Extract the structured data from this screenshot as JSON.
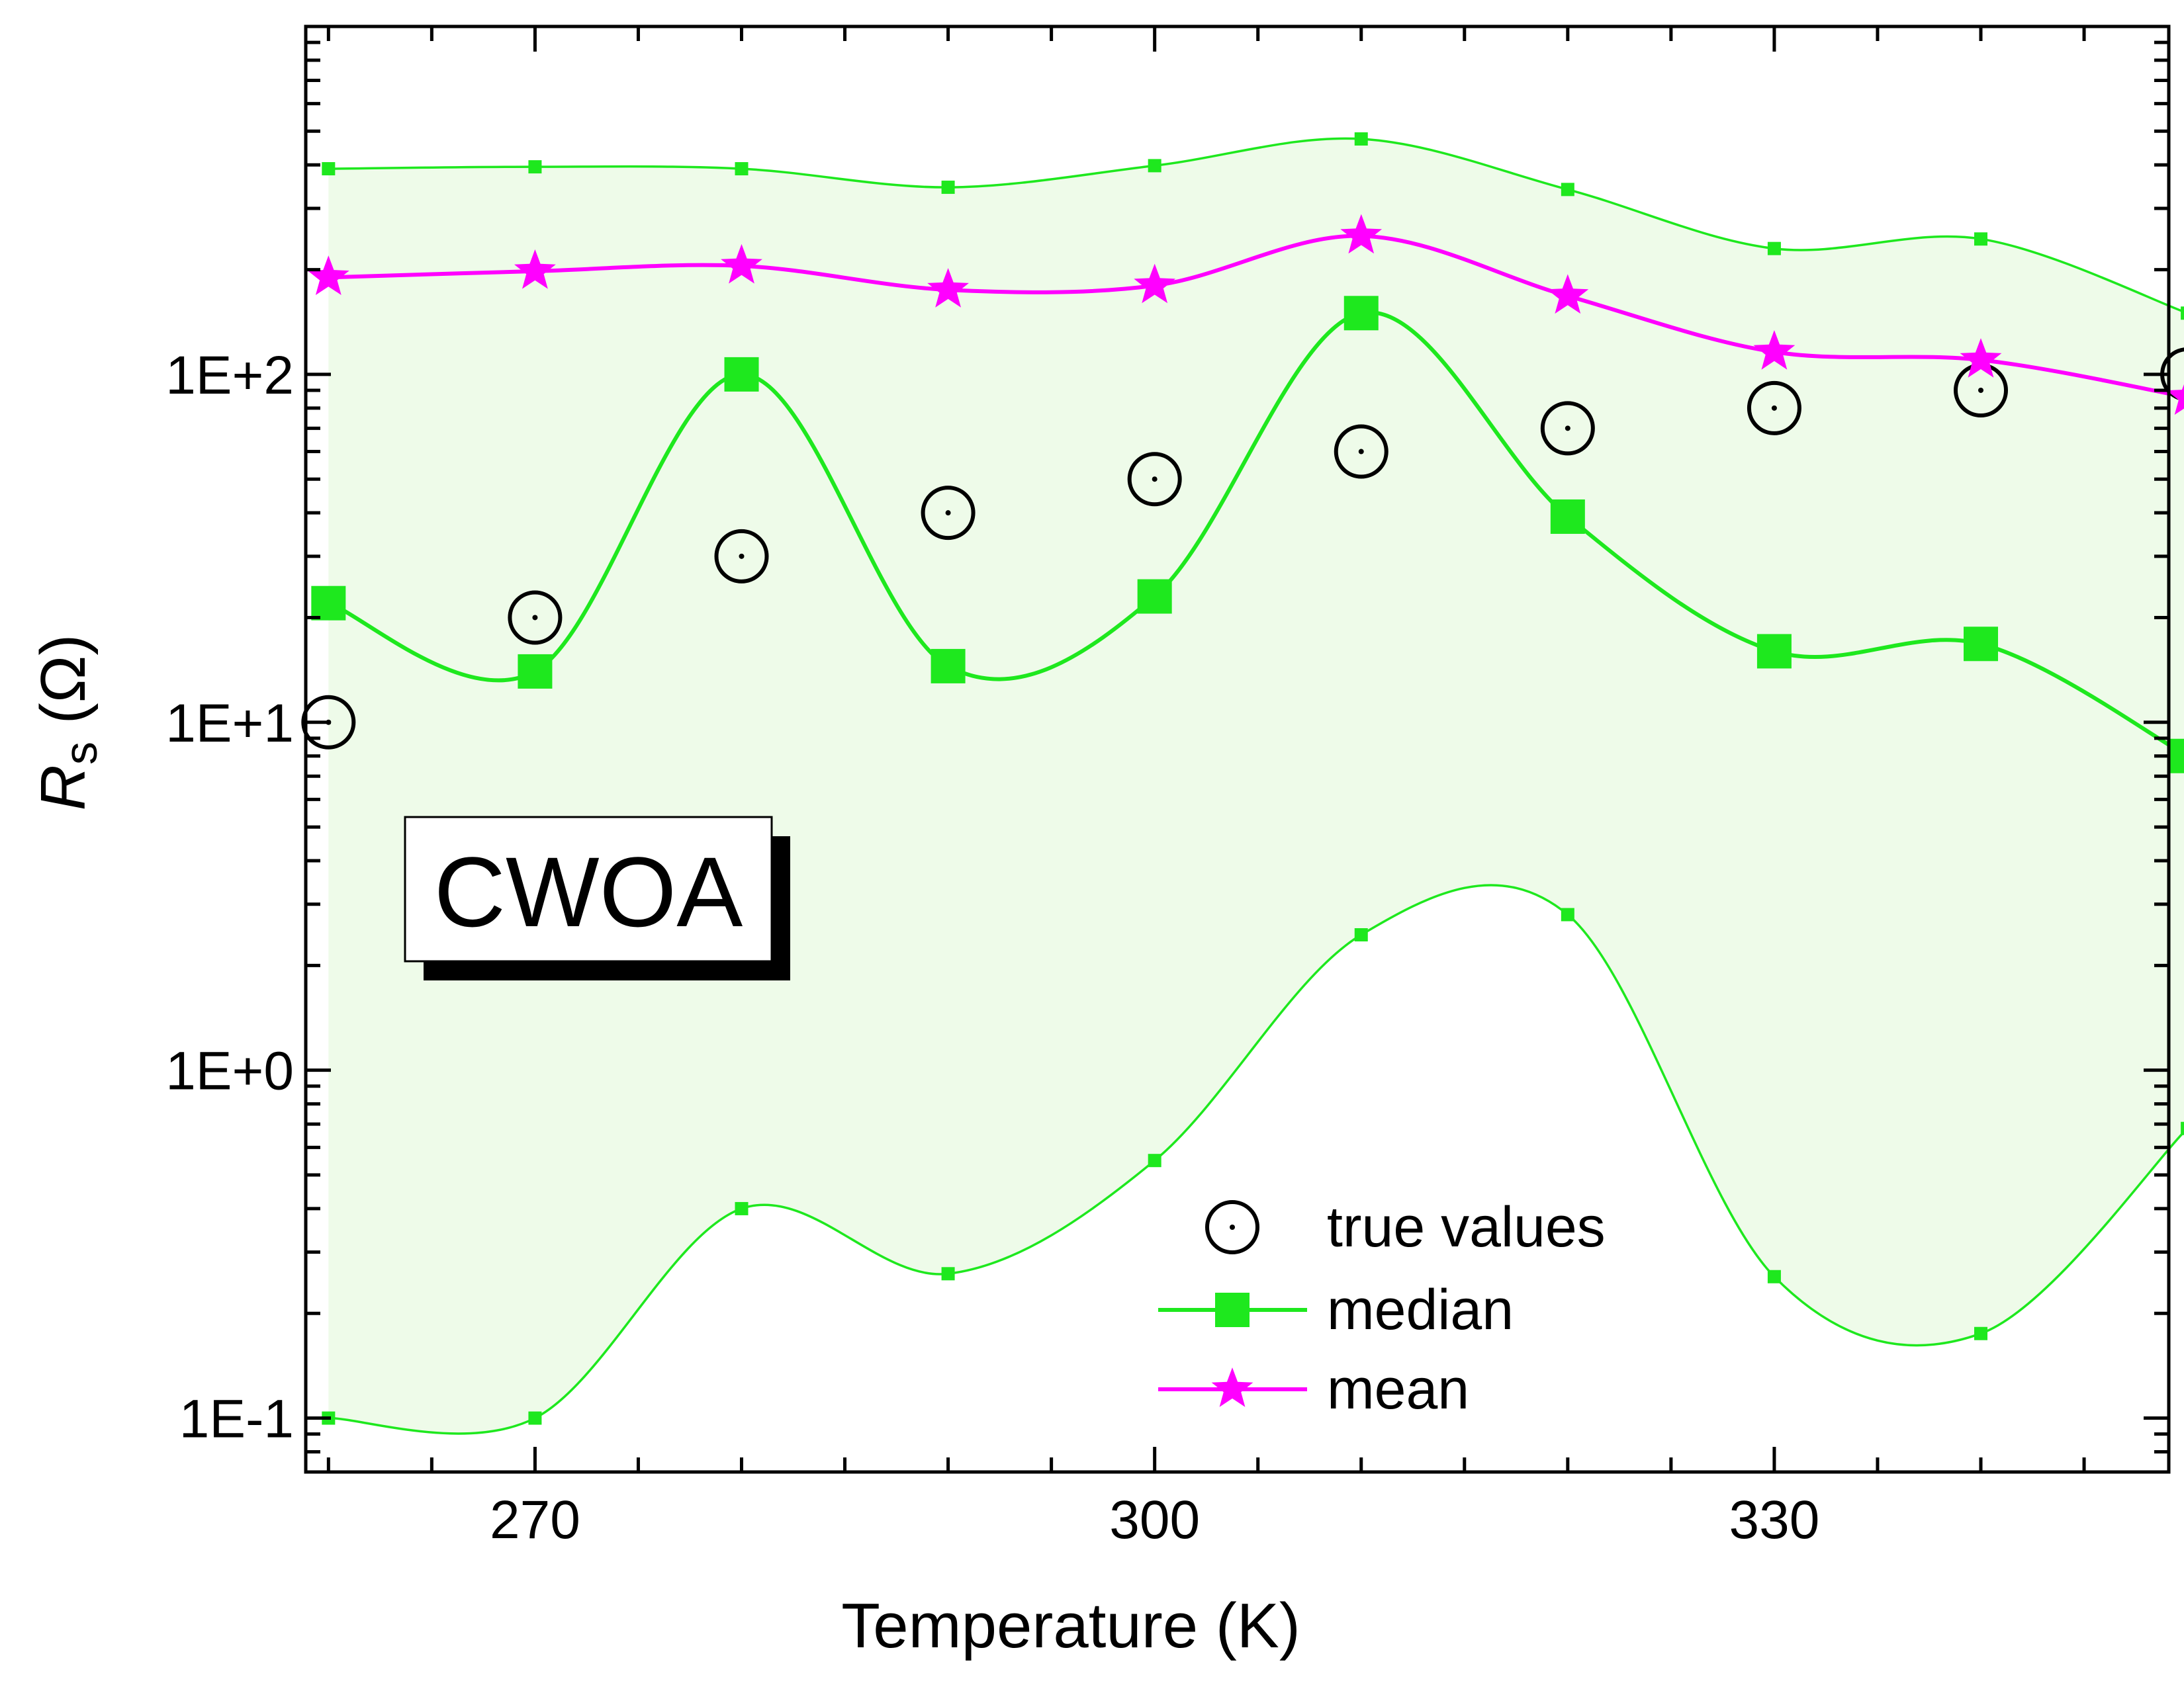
{
  "chart_data": {
    "type": "line",
    "xlabel": "Temperature (K)",
    "ylabel": {
      "symbol": "R",
      "subscript": "s",
      "unit": " (Ω)"
    },
    "x_scale": "linear",
    "y_scale": "log",
    "xlim": [
      258.9,
      349.1
    ],
    "ylim": [
      0.07,
      1000
    ],
    "x_ticks": [
      270,
      300,
      330
    ],
    "x_tick_labels": [
      "270",
      "300",
      "330"
    ],
    "y_ticks": [
      0.1,
      1,
      10,
      100
    ],
    "y_tick_labels": [
      "1E-1",
      "1E+0",
      "1E+1",
      "1E+2"
    ],
    "annotation": "CWOA",
    "fill_color": "#eefbe9",
    "x": [
      260,
      270,
      280,
      290,
      300,
      310,
      320,
      330,
      340,
      350
    ],
    "series": [
      {
        "name": "true values",
        "marker": "circle-dot",
        "color": "#000000",
        "values": [
          10,
          20,
          30,
          40,
          50,
          60,
          70,
          80,
          90,
          100
        ]
      },
      {
        "name": "median",
        "marker": "square",
        "color": "#1ee81e",
        "values": [
          22,
          14,
          100,
          14.5,
          23,
          150,
          39,
          16,
          16.8,
          8
        ]
      },
      {
        "name": "mean",
        "marker": "star",
        "color": "#ff00ff",
        "values": [
          190,
          198,
          205,
          175,
          180,
          250,
          168,
          116,
          110,
          86
        ]
      },
      {
        "marker": "small-square",
        "color": "#1ee81e",
        "values": [
          390,
          395,
          390,
          345,
          398,
          475,
          340,
          230,
          245,
          150
        ]
      },
      {
        "marker": "small-square",
        "color": "#1ee81e",
        "values": [
          0.1,
          0.1,
          0.4,
          0.26,
          0.55,
          2.45,
          2.8,
          0.255,
          0.175,
          0.68
        ]
      }
    ],
    "legend": {
      "position": "bottom-right",
      "entries": [
        "true values",
        "median",
        "mean"
      ]
    }
  }
}
